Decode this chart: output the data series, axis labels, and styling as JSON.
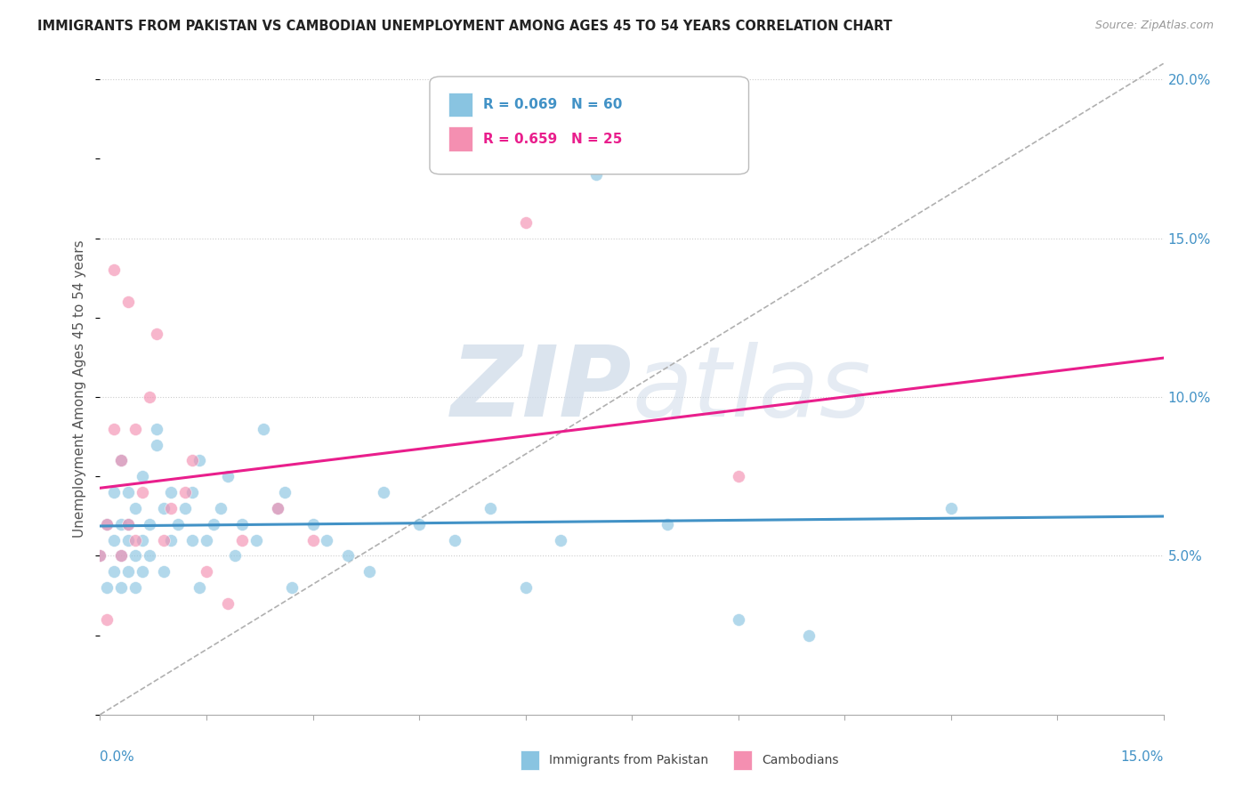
{
  "title": "IMMIGRANTS FROM PAKISTAN VS CAMBODIAN UNEMPLOYMENT AMONG AGES 45 TO 54 YEARS CORRELATION CHART",
  "source": "Source: ZipAtlas.com",
  "ylabel": "Unemployment Among Ages 45 to 54 years",
  "y_ticks": [
    0.05,
    0.1,
    0.15,
    0.2
  ],
  "y_tick_labels": [
    "5.0%",
    "10.0%",
    "15.0%",
    "20.0%"
  ],
  "xmin": 0.0,
  "xmax": 0.15,
  "ymin": 0.0,
  "ymax": 0.205,
  "blue_R": "0.069",
  "blue_N": "60",
  "pink_R": "0.659",
  "pink_N": "25",
  "blue_color": "#89c4e1",
  "pink_color": "#f48fb1",
  "blue_line_color": "#4292c6",
  "pink_line_color": "#e91e8c",
  "watermark_color": "#ccd9e8",
  "blue_points_x": [
    0.0,
    0.001,
    0.001,
    0.002,
    0.002,
    0.002,
    0.003,
    0.003,
    0.003,
    0.003,
    0.004,
    0.004,
    0.004,
    0.004,
    0.005,
    0.005,
    0.005,
    0.006,
    0.006,
    0.006,
    0.007,
    0.007,
    0.008,
    0.008,
    0.009,
    0.009,
    0.01,
    0.01,
    0.011,
    0.012,
    0.013,
    0.013,
    0.014,
    0.014,
    0.015,
    0.016,
    0.017,
    0.018,
    0.019,
    0.02,
    0.022,
    0.023,
    0.025,
    0.026,
    0.027,
    0.03,
    0.032,
    0.035,
    0.038,
    0.04,
    0.045,
    0.05,
    0.055,
    0.06,
    0.065,
    0.07,
    0.08,
    0.09,
    0.1,
    0.12
  ],
  "blue_points_y": [
    0.05,
    0.06,
    0.04,
    0.055,
    0.045,
    0.07,
    0.05,
    0.06,
    0.04,
    0.08,
    0.055,
    0.045,
    0.06,
    0.07,
    0.05,
    0.04,
    0.065,
    0.055,
    0.045,
    0.075,
    0.06,
    0.05,
    0.085,
    0.09,
    0.065,
    0.045,
    0.07,
    0.055,
    0.06,
    0.065,
    0.055,
    0.07,
    0.08,
    0.04,
    0.055,
    0.06,
    0.065,
    0.075,
    0.05,
    0.06,
    0.055,
    0.09,
    0.065,
    0.07,
    0.04,
    0.06,
    0.055,
    0.05,
    0.045,
    0.07,
    0.06,
    0.055,
    0.065,
    0.04,
    0.055,
    0.17,
    0.06,
    0.03,
    0.025,
    0.065
  ],
  "pink_points_x": [
    0.0,
    0.001,
    0.001,
    0.002,
    0.002,
    0.003,
    0.003,
    0.004,
    0.004,
    0.005,
    0.005,
    0.006,
    0.007,
    0.008,
    0.009,
    0.01,
    0.012,
    0.013,
    0.015,
    0.018,
    0.02,
    0.025,
    0.03,
    0.06,
    0.09
  ],
  "pink_points_y": [
    0.05,
    0.06,
    0.03,
    0.09,
    0.14,
    0.05,
    0.08,
    0.06,
    0.13,
    0.055,
    0.09,
    0.07,
    0.1,
    0.12,
    0.055,
    0.065,
    0.07,
    0.08,
    0.045,
    0.035,
    0.055,
    0.065,
    0.055,
    0.155,
    0.075
  ]
}
